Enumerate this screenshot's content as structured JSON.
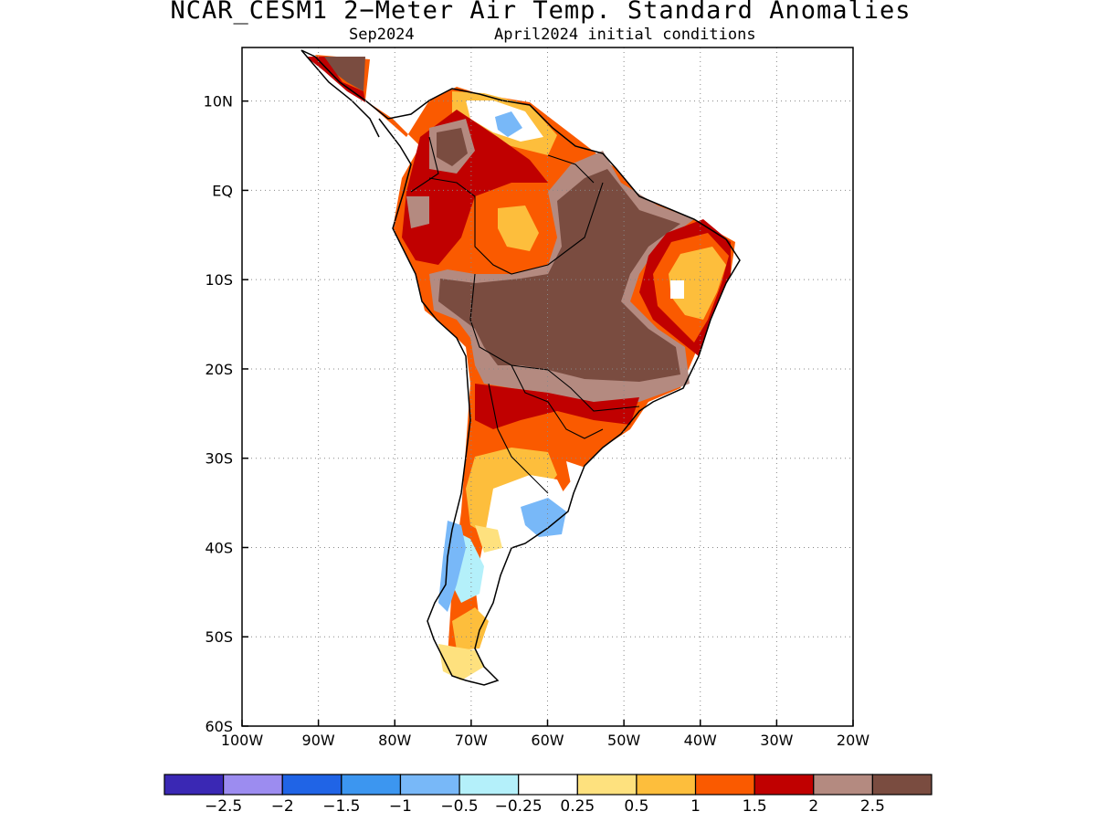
{
  "title": "NCAR_CESM1 2−Meter Air Temp. Standard Anomalies",
  "subtitle_left": "Sep2024",
  "subtitle_right": "April2024 initial conditions",
  "map": {
    "lon_range": [
      -100,
      -20
    ],
    "lat_range": [
      -60,
      16
    ],
    "lon_ticks": [
      {
        "value": -100,
        "label": "100W"
      },
      {
        "value": -90,
        "label": "90W"
      },
      {
        "value": -80,
        "label": "80W"
      },
      {
        "value": -70,
        "label": "70W"
      },
      {
        "value": -60,
        "label": "60W"
      },
      {
        "value": -50,
        "label": "50W"
      },
      {
        "value": -40,
        "label": "40W"
      },
      {
        "value": -30,
        "label": "30W"
      },
      {
        "value": -20,
        "label": "20W"
      }
    ],
    "lat_ticks": [
      {
        "value": 10,
        "label": "10N"
      },
      {
        "value": 0,
        "label": "EQ"
      },
      {
        "value": -10,
        "label": "10S"
      },
      {
        "value": -20,
        "label": "20S"
      },
      {
        "value": -30,
        "label": "30S"
      },
      {
        "value": -40,
        "label": "40S"
      },
      {
        "value": -50,
        "label": "50S"
      },
      {
        "value": -60,
        "label": "60S"
      }
    ],
    "gridlines": "dotted"
  },
  "colorbar": {
    "colors": [
      "#3a28b4",
      "#9c8cf0",
      "#2064e6",
      "#3c96f0",
      "#78b8f8",
      "#b4f0fa",
      "#ffffff",
      "#fee17e",
      "#fdbe3c",
      "#fa5a00",
      "#c00000",
      "#b48a80",
      "#7a4c40"
    ],
    "labels": [
      "−2.5",
      "−2",
      "−1.5",
      "−1",
      "−0.5",
      "−0.25",
      "0.25",
      "0.5",
      "1",
      "1.5",
      "2",
      "2.5"
    ]
  }
}
